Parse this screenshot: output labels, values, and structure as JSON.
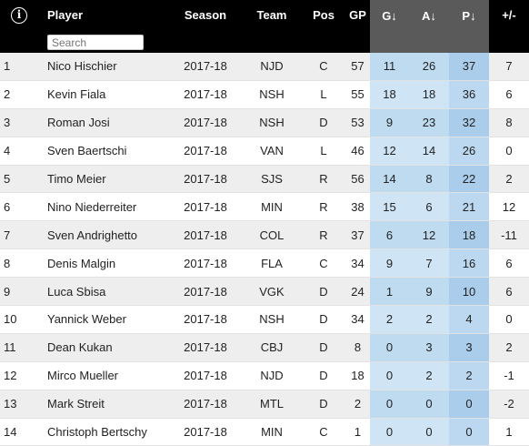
{
  "header": {
    "info_icon_glyph": "i",
    "search_placeholder": "Search",
    "columns": {
      "player": "Player",
      "season": "Season",
      "team": "Team",
      "pos": "Pos",
      "gp": "GP",
      "g": "G↓",
      "a": "A↓",
      "p": "P↓",
      "pm": "+/-"
    }
  },
  "rows": [
    {
      "rank": "1",
      "player": "Nico Hischier",
      "season": "2017-18",
      "team": "NJD",
      "pos": "C",
      "gp": "57",
      "g": "11",
      "a": "26",
      "p": "37",
      "pm": "7"
    },
    {
      "rank": "2",
      "player": "Kevin Fiala",
      "season": "2017-18",
      "team": "NSH",
      "pos": "L",
      "gp": "55",
      "g": "18",
      "a": "18",
      "p": "36",
      "pm": "6"
    },
    {
      "rank": "3",
      "player": "Roman Josi",
      "season": "2017-18",
      "team": "NSH",
      "pos": "D",
      "gp": "53",
      "g": "9",
      "a": "23",
      "p": "32",
      "pm": "8"
    },
    {
      "rank": "4",
      "player": "Sven Baertschi",
      "season": "2017-18",
      "team": "VAN",
      "pos": "L",
      "gp": "46",
      "g": "12",
      "a": "14",
      "p": "26",
      "pm": "0"
    },
    {
      "rank": "5",
      "player": "Timo Meier",
      "season": "2017-18",
      "team": "SJS",
      "pos": "R",
      "gp": "56",
      "g": "14",
      "a": "8",
      "p": "22",
      "pm": "2"
    },
    {
      "rank": "6",
      "player": "Nino Niederreiter",
      "season": "2017-18",
      "team": "MIN",
      "pos": "R",
      "gp": "38",
      "g": "15",
      "a": "6",
      "p": "21",
      "pm": "12"
    },
    {
      "rank": "7",
      "player": "Sven Andrighetto",
      "season": "2017-18",
      "team": "COL",
      "pos": "R",
      "gp": "37",
      "g": "6",
      "a": "12",
      "p": "18",
      "pm": "-11"
    },
    {
      "rank": "8",
      "player": "Denis Malgin",
      "season": "2017-18",
      "team": "FLA",
      "pos": "C",
      "gp": "34",
      "g": "9",
      "a": "7",
      "p": "16",
      "pm": "6"
    },
    {
      "rank": "9",
      "player": "Luca Sbisa",
      "season": "2017-18",
      "team": "VGK",
      "pos": "D",
      "gp": "24",
      "g": "1",
      "a": "9",
      "p": "10",
      "pm": "6"
    },
    {
      "rank": "10",
      "player": "Yannick Weber",
      "season": "2017-18",
      "team": "NSH",
      "pos": "D",
      "gp": "34",
      "g": "2",
      "a": "2",
      "p": "4",
      "pm": "0"
    },
    {
      "rank": "11",
      "player": "Dean Kukan",
      "season": "2017-18",
      "team": "CBJ",
      "pos": "D",
      "gp": "8",
      "g": "0",
      "a": "3",
      "p": "3",
      "pm": "2"
    },
    {
      "rank": "12",
      "player": "Mirco Mueller",
      "season": "2017-18",
      "team": "NJD",
      "pos": "D",
      "gp": "18",
      "g": "0",
      "a": "2",
      "p": "2",
      "pm": "-1"
    },
    {
      "rank": "13",
      "player": "Mark Streit",
      "season": "2017-18",
      "team": "MTL",
      "pos": "D",
      "gp": "2",
      "g": "0",
      "a": "0",
      "p": "0",
      "pm": "-2"
    },
    {
      "rank": "14",
      "player": "Christoph Bertschy",
      "season": "2017-18",
      "team": "MIN",
      "pos": "C",
      "gp": "1",
      "g": "0",
      "a": "0",
      "p": "0",
      "pm": "1"
    }
  ]
}
